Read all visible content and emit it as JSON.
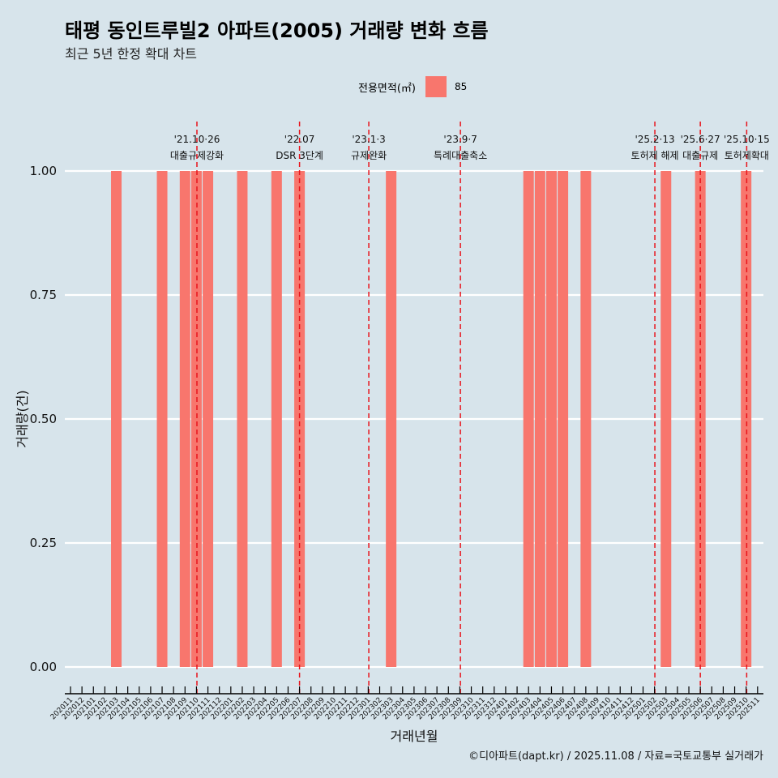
{
  "title": "태평 동인트루빌2 아파트(2005) 거래량 변화 흐름",
  "subtitle": "최근 5년 한정 확대 차트",
  "legend": {
    "title": "전용면적(㎡)",
    "items": [
      {
        "label": "85",
        "color": "#f8766d"
      }
    ]
  },
  "caption": "©디아파트(dapt.kr) / 2025.11.08 / 자료=국토교통부 실거래가",
  "chart_data": {
    "type": "bar",
    "xlabel": "거래년월",
    "ylabel": "거래량(건)",
    "ylim": [
      0,
      1.1
    ],
    "yticks": [
      "0.00",
      "0.25",
      "0.50",
      "0.75",
      "1.00"
    ],
    "categories": [
      "202011",
      "202012",
      "202101",
      "202102",
      "202103",
      "202104",
      "202105",
      "202106",
      "202107",
      "202108",
      "202109",
      "202110",
      "202111",
      "202112",
      "202201",
      "202202",
      "202203",
      "202204",
      "202205",
      "202206",
      "202207",
      "202208",
      "202209",
      "202210",
      "202211",
      "202212",
      "202301",
      "202302",
      "202303",
      "202304",
      "202305",
      "202306",
      "202307",
      "202308",
      "202309",
      "202310",
      "202311",
      "202312",
      "202401",
      "202402",
      "202403",
      "202404",
      "202405",
      "202406",
      "202407",
      "202408",
      "202409",
      "202410",
      "202411",
      "202412",
      "202501",
      "202502",
      "202503",
      "202504",
      "202505",
      "202506",
      "202507",
      "202508",
      "202509",
      "202510",
      "202511"
    ],
    "series": [
      {
        "name": "85",
        "color": "#f8766d",
        "values": [
          0,
          0,
          0,
          0,
          1,
          0,
          0,
          0,
          1,
          0,
          1,
          1,
          1,
          0,
          0,
          1,
          0,
          0,
          1,
          0,
          1,
          0,
          0,
          0,
          0,
          0,
          0,
          0,
          1,
          0,
          0,
          0,
          0,
          0,
          0,
          0,
          0,
          0,
          0,
          0,
          1,
          1,
          1,
          1,
          0,
          1,
          0,
          0,
          0,
          0,
          0,
          0,
          1,
          0,
          0,
          1,
          0,
          0,
          0,
          1,
          0
        ]
      }
    ],
    "events": [
      {
        "date": "'21.10·26",
        "label": "대출규제강화",
        "month_index": 11.04
      },
      {
        "date": "'22.07",
        "label": "DSR 3단계",
        "month_index": 20.0
      },
      {
        "date": "'23.1·3",
        "label": "규제완화",
        "month_index": 26.05
      },
      {
        "date": "'23.9·7",
        "label": "특례대출축소",
        "month_index": 34.05
      },
      {
        "date": "'25.2·13",
        "label": "토허제 해제",
        "month_index": 51.03
      },
      {
        "date": "'25.6·27",
        "label": "대출규제",
        "month_index": 55.0
      },
      {
        "date": "'25.10·15",
        "label": "토허제확대",
        "month_index": 59.05
      }
    ]
  }
}
